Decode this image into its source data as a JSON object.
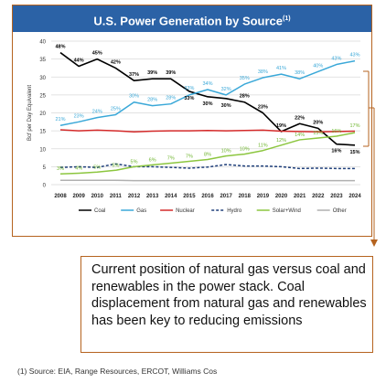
{
  "chart_data": {
    "type": "line",
    "title": "U.S. Power Generation by Source",
    "title_note": "(1)",
    "ylabel": "Bcf per Day Equivalent",
    "ylim": [
      0,
      40
    ],
    "y_ticks": [
      "0",
      "5",
      "10",
      "15",
      "20",
      "25",
      "30",
      "35",
      "40"
    ],
    "x": [
      "2008",
      "2009",
      "2010",
      "2011",
      "2012",
      "2013",
      "2014",
      "2015",
      "2016",
      "2017",
      "2018",
      "2019",
      "2020",
      "2021",
      "2022",
      "2023",
      "2024"
    ],
    "grid": true,
    "legend_position": "bottom",
    "series": [
      {
        "name": "Coal",
        "color": "#000000",
        "dash": "solid",
        "values": [
          36.8,
          33,
          35,
          32.5,
          29,
          29.5,
          29.5,
          26,
          24.5,
          24,
          23,
          20,
          14.8,
          17,
          15.7,
          11.3,
          11
        ],
        "labels": [
          "48%",
          "44%",
          "45%",
          "42%",
          "37%",
          "39%",
          "39%",
          "33%",
          "30%",
          "30%",
          "28%",
          "23%",
          "19%",
          "22%",
          "20%",
          "16%",
          "15%"
        ]
      },
      {
        "name": "Gas",
        "color": "#3aa8d8",
        "dash": "solid",
        "values": [
          16.5,
          17.5,
          18.7,
          19.5,
          23,
          22,
          22.5,
          25,
          26.5,
          25,
          28,
          29.8,
          30.8,
          29.5,
          31.5,
          33.5,
          34.5
        ],
        "labels": [
          "21%",
          "23%",
          "24%",
          "25%",
          "30%",
          "28%",
          "28%",
          "33%",
          "34%",
          "32%",
          "35%",
          "38%",
          "41%",
          "38%",
          "40%",
          "43%",
          "43%"
        ]
      },
      {
        "name": "Nuclear",
        "color": "#d42a2a",
        "dash": "solid",
        "values": [
          15.3,
          15,
          15.2,
          15,
          14.7,
          14.9,
          15,
          15,
          15.1,
          15,
          15.1,
          15.2,
          14.9,
          14.8,
          14.7,
          14.8,
          14.9
        ],
        "labels": []
      },
      {
        "name": "Hydro",
        "color": "#1f3f7a",
        "dash": "dashed",
        "values": [
          4.8,
          5,
          4.8,
          5.8,
          5,
          5,
          4.8,
          4.6,
          4.9,
          5.6,
          5.2,
          5.2,
          5,
          4.5,
          4.6,
          4.5,
          4.5
        ],
        "labels": []
      },
      {
        "name": "Solar+Wind",
        "color": "#8cc63f",
        "dash": "solid",
        "values": [
          3,
          3.2,
          3.5,
          4,
          5,
          5.5,
          6,
          6.5,
          7,
          8,
          8.5,
          9.5,
          11,
          12.5,
          13,
          13.5,
          14.5
        ],
        "labels": [
          "3%",
          "4%",
          "5%",
          "5%",
          "5%",
          "6%",
          "7%",
          "7%",
          "8%",
          "10%",
          "10%",
          "11%",
          "12%",
          "14%",
          "15%",
          "16%",
          "17%"
        ]
      },
      {
        "name": "Other",
        "color": "#b0b0b0",
        "dash": "solid",
        "values": [
          1.2,
          1.2,
          1.2,
          1.2,
          1.1,
          1.1,
          1.1,
          1.1,
          1.1,
          1.1,
          1.1,
          1.1,
          1.1,
          1.1,
          1.1,
          1.1,
          1.1
        ],
        "labels": []
      }
    ]
  },
  "callout": {
    "text": "Current position of natural gas versus coal and renewables in the power stack. Coal displacement from natural gas and renewables has been key to reducing emissions"
  },
  "footnote": "(1) Source: EIA, Range Resources, ERCOT, Williams Cos",
  "colors": {
    "title_bg": "#2b62a6",
    "frame": "#b5631f",
    "arrow": "#b5631f"
  }
}
